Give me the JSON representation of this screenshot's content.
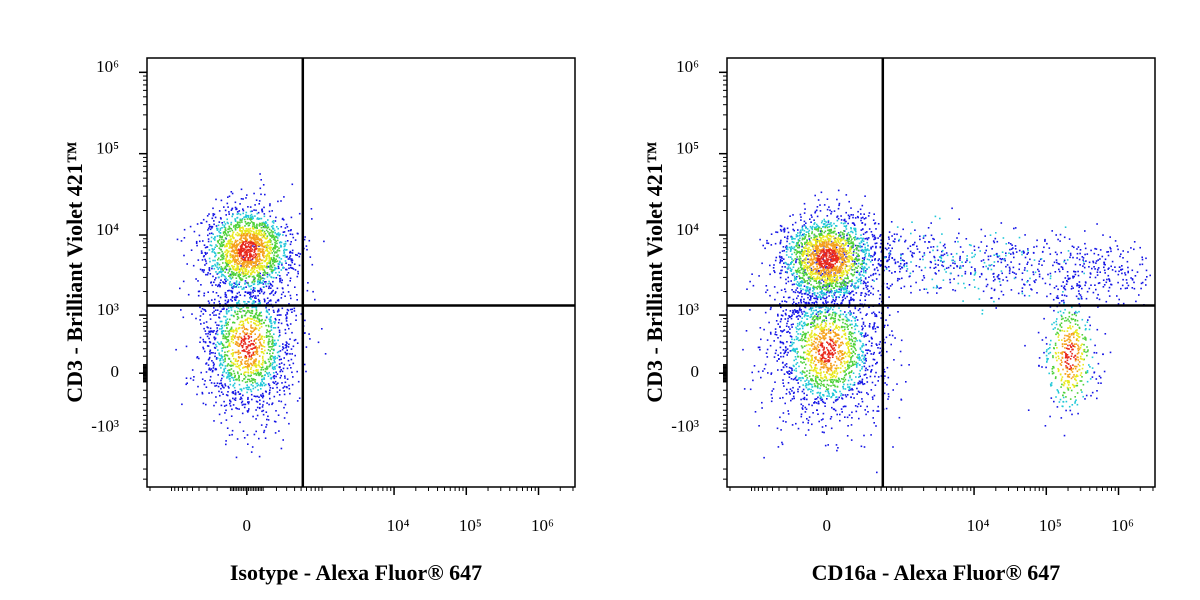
{
  "chart_data": [
    {
      "type": "density",
      "x_label": "Isotype - Alexa Fluor® 647",
      "y_label": "CD3 - Brilliant Violet 421™",
      "xlim": [
        -2200,
        3200000
      ],
      "ylim": [
        -5000,
        1500000
      ],
      "xticks": [
        0,
        {
          "value": 10000,
          "label": "10⁴"
        },
        {
          "value": 100000,
          "label": "10⁵"
        },
        {
          "value": 1000000,
          "label": "10⁶"
        }
      ],
      "yticks": [
        {
          "value": -1000,
          "label": "-10³"
        },
        0,
        {
          "value": 1000,
          "label": "10³"
        },
        {
          "value": 10000,
          "label": "10⁴"
        },
        {
          "value": 100000,
          "label": "10⁵"
        },
        {
          "value": 1000000,
          "label": "10⁶"
        }
      ],
      "gates": {
        "x": 530,
        "y": 1330
      }
    },
    {
      "type": "density",
      "x_label": "CD16a - Alexa Fluor® 647",
      "y_label": "CD3 - Brilliant Violet 421™",
      "xlim": [
        -2200,
        3200000
      ],
      "ylim": [
        -5000,
        1500000
      ],
      "xticks": [
        0,
        {
          "value": 10000,
          "label": "10⁴"
        },
        {
          "value": 100000,
          "label": "10⁵"
        },
        {
          "value": 1000000,
          "label": "10⁶"
        }
      ],
      "yticks": [
        {
          "value": -1000,
          "label": "-10³"
        },
        0,
        {
          "value": 1000,
          "label": "10³"
        },
        {
          "value": 10000,
          "label": "10⁴"
        },
        {
          "value": 100000,
          "label": "10⁵"
        },
        {
          "value": 1000000,
          "label": "10⁶"
        }
      ],
      "gates": {
        "x": 530,
        "y": 1330
      }
    }
  ]
}
